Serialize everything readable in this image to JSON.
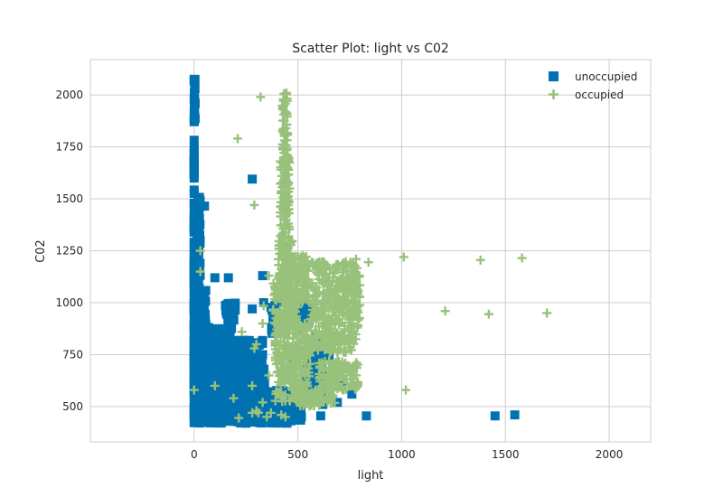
{
  "chart_data": {
    "type": "scatter",
    "title": "Scatter Plot: light vs C02",
    "xlabel": "light",
    "ylabel": "C02",
    "xlim": [
      -500,
      2200
    ],
    "ylim": [
      330,
      2170
    ],
    "xticks": [
      0,
      500,
      1000,
      1500,
      2000
    ],
    "yticks": [
      500,
      750,
      1000,
      1250,
      1500,
      1750,
      2000
    ],
    "grid": true,
    "legend_position": "top-right",
    "series": [
      {
        "name": "unoccupied",
        "marker": "square",
        "color": "#0072b2",
        "bands": [
          {
            "x": [
              0,
              0
            ],
            "y": [
              420,
              1790
            ]
          },
          {
            "x": [
              0,
              5
            ],
            "y": [
              1870,
              2080
            ]
          },
          {
            "x": [
              0,
              30
            ],
            "y": [
              420,
              1520
            ]
          },
          {
            "x": [
              0,
              60
            ],
            "y": [
              420,
              1060
            ]
          },
          {
            "x": [
              0,
              180
            ],
            "y": [
              420,
              880
            ]
          },
          {
            "x": [
              0,
              260
            ],
            "y": [
              420,
              720
            ]
          },
          {
            "x": [
              200,
              340
            ],
            "y": [
              560,
              820
            ]
          },
          {
            "x": [
              230,
              330
            ],
            "y": [
              420,
              620
            ]
          },
          {
            "x": [
              300,
              460
            ],
            "y": [
              420,
              580
            ]
          },
          {
            "x": [
              380,
              520
            ],
            "y": [
              430,
              520
            ]
          },
          {
            "x": [
              20,
              60
            ],
            "y": [
              520,
              560
            ]
          },
          {
            "x": [
              150,
              200
            ],
            "y": [
              900,
              1000
            ]
          },
          {
            "x": [
              370,
              400
            ],
            "y": [
              850,
              1000
            ]
          },
          {
            "x": [
              470,
              560
            ],
            "y": [
              900,
              1000
            ]
          },
          {
            "x": [
              540,
              620
            ],
            "y": [
              560,
              760
            ]
          }
        ],
        "points": [
          [
            0,
            2075
          ],
          [
            0,
            2070
          ],
          [
            0,
            1980
          ],
          [
            0,
            1880
          ],
          [
            50,
            1465
          ],
          [
            280,
            1595
          ],
          [
            280,
            970
          ],
          [
            100,
            1120
          ],
          [
            165,
            1120
          ],
          [
            330,
            1130
          ],
          [
            335,
            1000
          ],
          [
            100,
            790
          ],
          [
            70,
            880
          ],
          [
            610,
            455
          ],
          [
            830,
            455
          ],
          [
            1450,
            455
          ],
          [
            1545,
            460
          ],
          [
            490,
            520
          ],
          [
            525,
            580
          ],
          [
            620,
            510
          ],
          [
            690,
            520
          ],
          [
            710,
            600
          ],
          [
            760,
            560
          ],
          [
            650,
            740
          ],
          [
            470,
            720
          ],
          [
            430,
            470
          ],
          [
            460,
            445
          ],
          [
            430,
            1000
          ],
          [
            480,
            990
          ],
          [
            560,
            960
          ],
          [
            520,
            880
          ],
          [
            590,
            830
          ],
          [
            250,
            420
          ],
          [
            230,
            440
          ]
        ]
      },
      {
        "name": "occupied",
        "marker": "plus",
        "color": "#98c17b",
        "points": [
          [
            320,
            1990
          ],
          [
            210,
            1790
          ],
          [
            290,
            1470
          ],
          [
            30,
            1250
          ],
          [
            30,
            1150
          ],
          [
            360,
            1130
          ],
          [
            335,
            985
          ],
          [
            330,
            900
          ],
          [
            780,
            1210
          ],
          [
            840,
            1195
          ],
          [
            1010,
            1220
          ],
          [
            1380,
            1205
          ],
          [
            1580,
            1215
          ],
          [
            1210,
            960
          ],
          [
            1420,
            945
          ],
          [
            1700,
            950
          ],
          [
            770,
            950
          ],
          [
            1020,
            580
          ],
          [
            100,
            600
          ],
          [
            0,
            580
          ],
          [
            190,
            540
          ],
          [
            300,
            480
          ],
          [
            310,
            470
          ],
          [
            280,
            470
          ],
          [
            350,
            450
          ],
          [
            215,
            445
          ],
          [
            300,
            800
          ],
          [
            290,
            780
          ],
          [
            230,
            860
          ],
          [
            360,
            650
          ],
          [
            280,
            600
          ],
          [
            330,
            520
          ],
          [
            370,
            470
          ],
          [
            420,
            460
          ],
          [
            440,
            450
          ]
        ],
        "bands": [
          {
            "x": [
              425,
              450
            ],
            "y": [
              1700,
              2010
            ]
          },
          {
            "x": [
              415,
              460
            ],
            "y": [
              1300,
              1700
            ]
          },
          {
            "x": [
              400,
              480
            ],
            "y": [
              1100,
              1300
            ]
          },
          {
            "x": [
              380,
              500
            ],
            "y": [
              900,
              1100
            ]
          },
          {
            "x": [
              390,
              560
            ],
            "y": [
              520,
              900
            ]
          },
          {
            "x": [
              480,
              680
            ],
            "y": [
              500,
              580
            ]
          },
          {
            "x": [
              600,
              790
            ],
            "y": [
              580,
              720
            ]
          },
          {
            "x": [
              500,
              780
            ],
            "y": [
              760,
              880
            ]
          },
          {
            "x": [
              560,
              800
            ],
            "y": [
              880,
              1200
            ]
          },
          {
            "x": [
              440,
              560
            ],
            "y": [
              1000,
              1230
            ]
          }
        ]
      }
    ]
  }
}
